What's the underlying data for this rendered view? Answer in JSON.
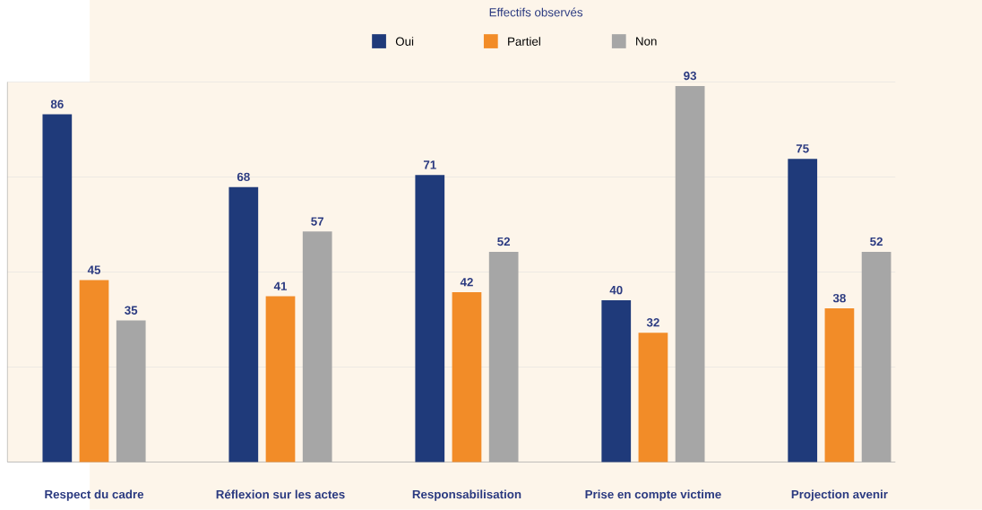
{
  "chart_data": {
    "type": "bar",
    "title": "Effectifs observés",
    "categories": [
      "Respect du cadre",
      "Réflexion sur les actes",
      "Responsabilisation",
      "Prise en compte victime",
      "Projection avenir"
    ],
    "series": [
      {
        "name": "Oui",
        "color": "#1f3a7a",
        "values": [
          86,
          68,
          71,
          40,
          75
        ]
      },
      {
        "name": "Partiel",
        "color": "#f28c28",
        "values": [
          45,
          41,
          42,
          32,
          38
        ]
      },
      {
        "name": "Non",
        "color": "#a6a6a6",
        "values": [
          35,
          57,
          52,
          93,
          52
        ]
      }
    ],
    "ylim": [
      0,
      94
    ],
    "yticks": [
      {
        "value": 0,
        "label": null
      },
      {
        "value": 23.5,
        "label": null
      },
      {
        "value": 47,
        "label": null
      },
      {
        "value": 70.5,
        "label": null
      },
      {
        "value": 94,
        "label": null
      }
    ],
    "grid": "y",
    "legend": "top",
    "data_labels": true,
    "tick_labels": "x"
  }
}
